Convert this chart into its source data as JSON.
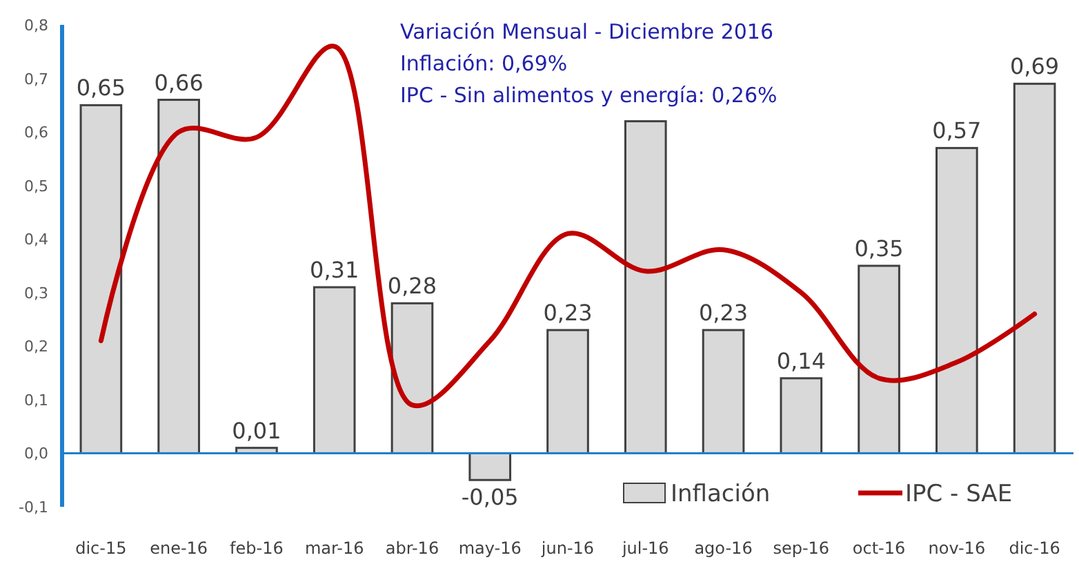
{
  "chart_data": {
    "type": "bar",
    "categories": [
      "dic-15",
      "ene-16",
      "feb-16",
      "mar-16",
      "abr-16",
      "may-16",
      "jun-16",
      "jul-16",
      "ago-16",
      "sep-16",
      "oct-16",
      "nov-16",
      "dic-16"
    ],
    "series": [
      {
        "name": "Inflación",
        "color": "#d9d9d9",
        "values": [
          0.65,
          0.66,
          0.01,
          0.31,
          0.28,
          -0.05,
          0.23,
          0.62,
          0.23,
          0.14,
          0.35,
          0.57,
          0.69
        ],
        "value_labels": [
          "0,65",
          "0,66",
          "0,01",
          "0,31",
          "0,28",
          "-0,05",
          "0,23",
          null,
          "0,23",
          "0,14",
          "0,35",
          "0,57",
          "0,69"
        ]
      },
      {
        "name": "IPC - SAE",
        "type": "line",
        "color": "#c00000",
        "values": [
          0.21,
          0.6,
          0.59,
          0.76,
          0.09,
          0.21,
          0.41,
          0.34,
          0.38,
          0.3,
          0.14,
          0.17,
          0.26
        ]
      }
    ],
    "ylim": [
      -0.1,
      0.8
    ],
    "yticks": [
      {
        "value": -0.1,
        "label": "-0,1"
      },
      {
        "value": 0,
        "label": "0,0"
      },
      {
        "value": 0.1,
        "label": "0,1"
      },
      {
        "value": 0.2,
        "label": "0,2"
      },
      {
        "value": 0.3,
        "label": "0,3"
      },
      {
        "value": 0.4,
        "label": "0,4"
      },
      {
        "value": 0.5,
        "label": "0,5"
      },
      {
        "value": 0.6,
        "label": "0,6"
      },
      {
        "value": 0.7,
        "label": "0,7"
      },
      {
        "value": 0.8,
        "label": "0,8"
      }
    ],
    "annotations": [
      "Variación Mensual - Diciembre 2016",
      "Inflación: 0,69%",
      "IPC - Sin alimentos y energía: 0,26%"
    ],
    "grid": false,
    "ref_lines": [
      {
        "axis": "y",
        "value": 0,
        "color": "#1f7fd0"
      }
    ],
    "legend": "bottom right",
    "marker": "none",
    "line_style": "solid"
  }
}
